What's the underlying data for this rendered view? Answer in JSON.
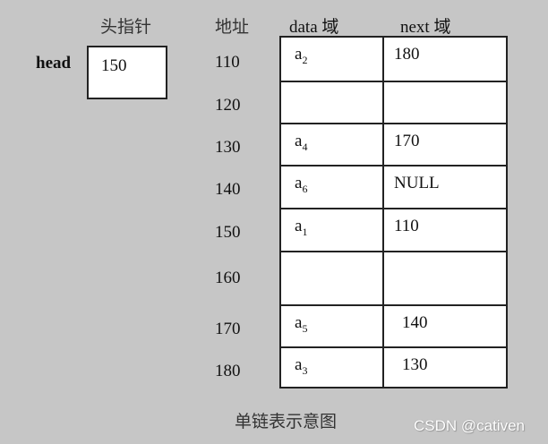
{
  "headers": {
    "head_pointer": "头指针",
    "address": "地址",
    "data_field": "data 域",
    "next_field": "next 域"
  },
  "head": {
    "label": "head",
    "value": "150"
  },
  "rows": [
    {
      "address": "110",
      "data_base": "a",
      "data_sub": "2",
      "next": "180"
    },
    {
      "address": "120",
      "data_base": "",
      "data_sub": "",
      "next": ""
    },
    {
      "address": "130",
      "data_base": "a",
      "data_sub": "4",
      "next": "170"
    },
    {
      "address": "140",
      "data_base": "a",
      "data_sub": "6",
      "next": "NULL"
    },
    {
      "address": "150",
      "data_base": "a",
      "data_sub": "1",
      "next": "110"
    },
    {
      "address": "160",
      "data_base": "",
      "data_sub": "",
      "next": ""
    },
    {
      "address": "170",
      "data_base": "a",
      "data_sub": "5",
      "next": "140"
    },
    {
      "address": "180",
      "data_base": "a",
      "data_sub": "3",
      "next": "130"
    }
  ],
  "caption": "单链表示意图",
  "watermark": "CSDN @cativen"
}
